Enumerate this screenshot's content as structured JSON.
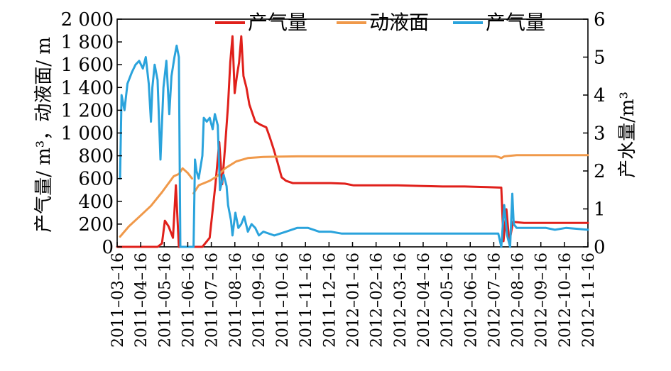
{
  "chart_data": {
    "type": "line",
    "xlabel": "",
    "ylabel_left": "产气量/ m³，动液面/ m",
    "ylabel_right": "产水量/m³",
    "ylim_left": [
      0,
      2000
    ],
    "ylim_right": [
      0,
      6
    ],
    "x_ticks": [
      "2011–03–16",
      "2011–04–16",
      "2011–05–16",
      "2011–06–16",
      "2011–07–16",
      "2011–08–16",
      "2011–09–16",
      "2011–10–16",
      "2011–11–16",
      "2011–12–16",
      "2012–01–16",
      "2012–02–16",
      "2012–03–16",
      "2012–04–16",
      "2012–05–16",
      "2012–06–16",
      "2012–07–16",
      "2012–08–16",
      "2012–09–16",
      "2012–10–16",
      "2012–11–16"
    ],
    "y_ticks_left": [
      "0",
      "200",
      "400",
      "600",
      "800",
      "1 000",
      "1 200",
      "1 400",
      "1 600",
      "1 800",
      "2 000"
    ],
    "y_ticks_right": [
      "0",
      "1",
      "2",
      "3",
      "4",
      "5",
      "6"
    ],
    "legend_position": "top",
    "series": [
      {
        "name": "产气量",
        "axis": "left",
        "color": "#e0201b",
        "points": [
          [
            "2011-03-16",
            0
          ],
          [
            "2011-05-10",
            0
          ],
          [
            "2011-05-16",
            30
          ],
          [
            "2011-05-20",
            230
          ],
          [
            "2011-05-25",
            180
          ],
          [
            "2011-05-31",
            80
          ],
          [
            "2011-06-04",
            540
          ],
          [
            "2011-06-08",
            0
          ],
          [
            "2011-07-01",
            0
          ],
          [
            "2011-07-10",
            0
          ],
          [
            "2011-07-20",
            80
          ],
          [
            "2011-07-28",
            560
          ],
          [
            "2011-08-02",
            920
          ],
          [
            "2011-08-06",
            550
          ],
          [
            "2011-08-10",
            880
          ],
          [
            "2011-08-14",
            1250
          ],
          [
            "2011-08-17",
            1620
          ],
          [
            "2011-08-20",
            1850
          ],
          [
            "2011-08-23",
            1350
          ],
          [
            "2011-08-26",
            1500
          ],
          [
            "2011-08-29",
            1620
          ],
          [
            "2011-09-01",
            1850
          ],
          [
            "2011-09-04",
            1500
          ],
          [
            "2011-09-08",
            1400
          ],
          [
            "2011-09-12",
            1250
          ],
          [
            "2011-09-20",
            1100
          ],
          [
            "2011-09-28",
            1070
          ],
          [
            "2011-10-05",
            1050
          ],
          [
            "2011-10-10",
            960
          ],
          [
            "2011-10-15",
            860
          ],
          [
            "2011-10-20",
            750
          ],
          [
            "2011-10-26",
            610
          ],
          [
            "2011-11-01",
            580
          ],
          [
            "2011-11-10",
            560
          ],
          [
            "2011-12-01",
            560
          ],
          [
            "2012-01-01",
            560
          ],
          [
            "2012-01-20",
            555
          ],
          [
            "2012-02-01",
            540
          ],
          [
            "2012-03-01",
            540
          ],
          [
            "2012-04-01",
            540
          ],
          [
            "2012-05-01",
            535
          ],
          [
            "2012-06-01",
            530
          ],
          [
            "2012-07-01",
            530
          ],
          [
            "2012-08-01",
            525
          ],
          [
            "2012-08-20",
            520
          ],
          [
            "2012-08-23",
            50
          ],
          [
            "2012-08-27",
            330
          ],
          [
            "2012-08-31",
            40
          ],
          [
            "2012-09-05",
            220
          ],
          [
            "2012-09-20",
            210
          ],
          [
            "2012-10-16",
            210
          ],
          [
            "2012-12-16",
            210
          ]
        ]
      },
      {
        "name": "动液面",
        "axis": "left",
        "color": "#f0994a",
        "points": [
          [
            "2011-03-20",
            90
          ],
          [
            "2011-04-01",
            180
          ],
          [
            "2011-04-16",
            270
          ],
          [
            "2011-05-01",
            360
          ],
          [
            "2011-05-16",
            480
          ],
          [
            "2011-06-01",
            620
          ],
          [
            "2011-06-08",
            640
          ],
          [
            "2011-06-13",
            690
          ],
          [
            "2011-06-20",
            650
          ],
          [
            "2011-06-26",
            600
          ],
          null,
          [
            "2011-06-28",
            470
          ],
          [
            "2011-07-05",
            540
          ],
          [
            "2011-07-20",
            580
          ],
          [
            "2011-07-30",
            620
          ],
          [
            "2011-08-10",
            690
          ],
          [
            "2011-08-25",
            750
          ],
          [
            "2011-09-10",
            780
          ],
          [
            "2011-10-01",
            790
          ],
          [
            "2011-11-16",
            795
          ],
          [
            "2012-01-16",
            795
          ],
          [
            "2012-05-16",
            795
          ],
          [
            "2012-08-12",
            795
          ],
          [
            "2012-08-16",
            790
          ],
          [
            "2012-08-20",
            780
          ],
          [
            "2012-08-24",
            795
          ],
          [
            "2012-09-10",
            805
          ],
          [
            "2012-12-16",
            805
          ]
        ]
      },
      {
        "name": "产气量",
        "axis": "right",
        "color": "#2aa3dc",
        "points": [
          [
            "2011-03-20",
            1.8
          ],
          [
            "2011-03-22",
            4.0
          ],
          [
            "2011-03-26",
            3.6
          ],
          [
            "2011-03-30",
            4.3
          ],
          [
            "2011-04-05",
            4.6
          ],
          [
            "2011-04-10",
            4.8
          ],
          [
            "2011-04-15",
            4.9
          ],
          [
            "2011-04-20",
            4.7
          ],
          [
            "2011-04-24",
            5.0
          ],
          [
            "2011-04-28",
            4.3
          ],
          [
            "2011-05-01",
            3.3
          ],
          [
            "2011-05-03",
            4.2
          ],
          [
            "2011-05-06",
            4.8
          ],
          [
            "2011-05-10",
            4.4
          ],
          [
            "2011-05-14",
            2.3
          ],
          [
            "2011-05-18",
            4.2
          ],
          [
            "2011-05-22",
            4.9
          ],
          [
            "2011-05-26",
            3.5
          ],
          [
            "2011-05-29",
            4.5
          ],
          [
            "2011-06-02",
            5.0
          ],
          [
            "2011-06-05",
            5.3
          ],
          [
            "2011-06-08",
            5.0
          ],
          [
            "2011-06-10",
            0.0
          ],
          [
            "2011-06-28",
            0.0
          ],
          [
            "2011-06-30",
            2.3
          ],
          [
            "2011-07-02",
            2.0
          ],
          [
            "2011-07-05",
            1.8
          ],
          [
            "2011-07-10",
            2.4
          ],
          [
            "2011-07-12",
            3.4
          ],
          [
            "2011-07-16",
            3.3
          ],
          [
            "2011-07-20",
            3.4
          ],
          [
            "2011-07-24",
            3.1
          ],
          [
            "2011-07-27",
            3.5
          ],
          [
            "2011-07-31",
            3.2
          ],
          [
            "2011-08-03",
            1.5
          ],
          [
            "2011-08-08",
            1.9
          ],
          [
            "2011-08-12",
            1.6
          ],
          [
            "2011-08-14",
            1.1
          ],
          [
            "2011-08-18",
            0.7
          ],
          [
            "2011-08-20",
            0.3
          ],
          [
            "2011-08-24",
            0.9
          ],
          [
            "2011-08-28",
            0.5
          ],
          [
            "2011-09-01",
            0.6
          ],
          [
            "2011-09-05",
            0.8
          ],
          [
            "2011-09-10",
            0.4
          ],
          [
            "2011-09-15",
            0.6
          ],
          [
            "2011-09-20",
            0.5
          ],
          [
            "2011-09-25",
            0.3
          ],
          [
            "2011-10-01",
            0.4
          ],
          [
            "2011-10-16",
            0.3
          ],
          [
            "2011-11-01",
            0.4
          ],
          [
            "2011-11-16",
            0.5
          ],
          [
            "2011-12-01",
            0.5
          ],
          [
            "2011-12-16",
            0.4
          ],
          [
            "2012-01-01",
            0.4
          ],
          [
            "2012-01-16",
            0.35
          ],
          [
            "2012-03-16",
            0.35
          ],
          [
            "2012-06-16",
            0.35
          ],
          [
            "2012-08-16",
            0.35
          ],
          [
            "2012-08-20",
            0.0
          ],
          [
            "2012-08-24",
            1.1
          ],
          [
            "2012-08-28",
            0.3
          ],
          [
            "2012-09-01",
            0.0
          ],
          [
            "2012-09-04",
            1.4
          ],
          [
            "2012-09-06",
            0.6
          ],
          [
            "2012-09-10",
            0.5
          ],
          [
            "2012-10-01",
            0.5
          ],
          [
            "2012-10-20",
            0.5
          ],
          [
            "2012-11-01",
            0.45
          ],
          [
            "2012-11-16",
            0.5
          ],
          [
            "2012-12-16",
            0.45
          ]
        ]
      }
    ]
  }
}
